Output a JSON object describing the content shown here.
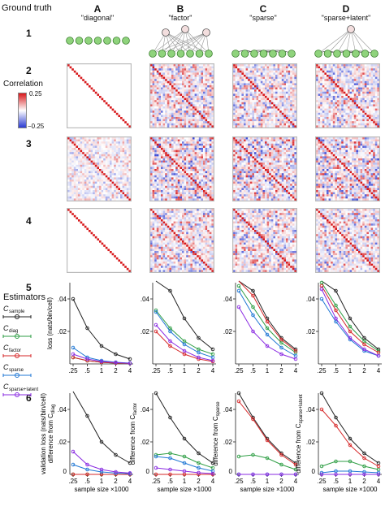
{
  "ground_truth_title": "Ground truth",
  "estimators_title": "Estimators",
  "correlation_title": "Correlation",
  "colorbar": {
    "max_label": "0.25",
    "min_label": "−0.25",
    "max_color": "#d7191c",
    "mid_color": "#ffffff",
    "min_color": "#2b3bd1"
  },
  "columns": [
    {
      "letter": "A",
      "title": "\"diagonal\""
    },
    {
      "letter": "B",
      "title": "\"factor\""
    },
    {
      "letter": "C",
      "title": "\"sparse\""
    },
    {
      "letter": "D",
      "title": "\"sparse+latent\""
    }
  ],
  "rows": {
    "r1": "1",
    "r2": "2",
    "r3": "3",
    "r4": "4",
    "r5": "5",
    "r6": "6"
  },
  "legend": [
    {
      "label": "C",
      "sub": "sample",
      "color": "#222222"
    },
    {
      "label": "C",
      "sub": "diag",
      "color": "#2e9e44"
    },
    {
      "label": "C",
      "sub": "factor",
      "color": "#d62728"
    },
    {
      "label": "C",
      "sub": "sparse",
      "color": "#1f77d4"
    },
    {
      "label": "C",
      "sub": "sparse+latent",
      "color": "#8a2be2"
    }
  ],
  "row5_ylabel": "loss (nats/bin/cell)",
  "row6_ylabel_A_1": "validation loss (nats/bin/cell)",
  "row6_ylabel_A_2": "difference from C",
  "row6_ylabel_A_sub": "diag",
  "row6_ylabels": [
    "difference from C",
    "difference from C",
    "difference from C"
  ],
  "row6_ylabel_subs": [
    "factor",
    "sparse",
    "sparse+latent"
  ],
  "xlabel": "sample size ×1000",
  "x_ticks": [
    ".25",
    ".5",
    "1",
    "2",
    "4"
  ],
  "y_ticks": [
    ".02",
    ".04"
  ],
  "y_zero": "0",
  "chart_data": [
    {
      "type": "line",
      "panel": "A5",
      "x": [
        0.25,
        0.5,
        1,
        2,
        4
      ],
      "ylim": [
        0,
        0.05
      ],
      "xlabel": "sample size ×1000",
      "ylabel": "loss (nats/bin/cell)",
      "series": [
        {
          "name": "C sample",
          "values": [
            0.04,
            0.022,
            0.011,
            0.006,
            0.003
          ],
          "color": "#222222"
        },
        {
          "name": "C diag",
          "values": [
            0.004,
            0.002,
            0.001,
            0.0005,
            0.0003
          ],
          "color": "#2e9e44"
        },
        {
          "name": "C factor",
          "values": [
            0.004,
            0.002,
            0.001,
            0.0005,
            0.0003
          ],
          "color": "#d62728"
        },
        {
          "name": "C sparse",
          "values": [
            0.01,
            0.004,
            0.002,
            0.001,
            0.0005
          ],
          "color": "#1f77d4"
        },
        {
          "name": "C sparse+latent",
          "values": [
            0.006,
            0.003,
            0.0015,
            0.0008,
            0.0004
          ],
          "color": "#8a2be2"
        }
      ]
    },
    {
      "type": "line",
      "panel": "B5",
      "x": [
        0.25,
        0.5,
        1,
        2,
        4
      ],
      "ylim": [
        0,
        0.05
      ],
      "series": [
        {
          "name": "C sample",
          "values": [
            0.06,
            0.045,
            0.028,
            0.016,
            0.009
          ],
          "color": "#222222"
        },
        {
          "name": "C diag",
          "values": [
            0.033,
            0.022,
            0.014,
            0.009,
            0.006
          ],
          "color": "#2e9e44"
        },
        {
          "name": "C factor",
          "values": [
            0.02,
            0.011,
            0.006,
            0.003,
            0.0015
          ],
          "color": "#d62728"
        },
        {
          "name": "C sparse",
          "values": [
            0.032,
            0.02,
            0.012,
            0.007,
            0.004
          ],
          "color": "#1f77d4"
        },
        {
          "name": "C sparse+latent",
          "values": [
            0.024,
            0.014,
            0.008,
            0.004,
            0.002
          ],
          "color": "#8a2be2"
        }
      ]
    },
    {
      "type": "line",
      "panel": "C5",
      "x": [
        0.25,
        0.5,
        1,
        2,
        4
      ],
      "ylim": [
        0,
        0.05
      ],
      "series": [
        {
          "name": "C sample",
          "values": [
            0.06,
            0.045,
            0.028,
            0.016,
            0.009
          ],
          "color": "#222222"
        },
        {
          "name": "C diag",
          "values": [
            0.048,
            0.035,
            0.022,
            0.013,
            0.007
          ],
          "color": "#2e9e44"
        },
        {
          "name": "C factor",
          "values": [
            0.06,
            0.042,
            0.026,
            0.015,
            0.008
          ],
          "color": "#d62728"
        },
        {
          "name": "C sparse",
          "values": [
            0.045,
            0.03,
            0.018,
            0.01,
            0.005
          ],
          "color": "#1f77d4"
        },
        {
          "name": "C sparse+latent",
          "values": [
            0.035,
            0.02,
            0.011,
            0.006,
            0.003
          ],
          "color": "#8a2be2"
        }
      ]
    },
    {
      "type": "line",
      "panel": "D5",
      "x": [
        0.25,
        0.5,
        1,
        2,
        4
      ],
      "ylim": [
        0,
        0.05
      ],
      "series": [
        {
          "name": "C sample",
          "values": [
            0.06,
            0.045,
            0.028,
            0.016,
            0.009
          ],
          "color": "#222222"
        },
        {
          "name": "C diag",
          "values": [
            0.05,
            0.036,
            0.023,
            0.014,
            0.008
          ],
          "color": "#2e9e44"
        },
        {
          "name": "C factor",
          "values": [
            0.048,
            0.033,
            0.02,
            0.012,
            0.007
          ],
          "color": "#d62728"
        },
        {
          "name": "C sparse",
          "values": [
            0.04,
            0.026,
            0.015,
            0.008,
            0.005
          ],
          "color": "#1f77d4"
        },
        {
          "name": "C sparse+latent",
          "values": [
            0.046,
            0.028,
            0.016,
            0.009,
            0.005
          ],
          "color": "#8a2be2"
        }
      ]
    },
    {
      "type": "line",
      "panel": "A6",
      "x": [
        0.25,
        0.5,
        1,
        2,
        4
      ],
      "ylim": [
        0,
        0.05
      ],
      "xlabel": "sample size ×1000",
      "series": [
        {
          "name": "C sample",
          "values": [
            0.055,
            0.036,
            0.02,
            0.012,
            0.007
          ],
          "color": "#222222"
        },
        {
          "name": "C diag",
          "values": [
            0.0,
            0.0,
            0.0,
            0.0,
            0.0
          ],
          "color": "#2e9e44"
        },
        {
          "name": "C factor",
          "values": [
            0.0,
            0.0,
            0.0,
            0.0,
            0.0
          ],
          "color": "#d62728"
        },
        {
          "name": "C sparse",
          "values": [
            0.006,
            0.003,
            0.0015,
            0.0008,
            0.0004
          ],
          "color": "#1f77d4"
        },
        {
          "name": "C sparse+latent",
          "values": [
            0.014,
            0.006,
            0.003,
            0.0015,
            0.0008
          ],
          "color": "#8a2be2"
        }
      ]
    },
    {
      "type": "line",
      "panel": "B6",
      "x": [
        0.25,
        0.5,
        1,
        2,
        4
      ],
      "ylim": [
        0,
        0.05
      ],
      "xlabel": "sample size ×1000",
      "series": [
        {
          "name": "C sample",
          "values": [
            0.05,
            0.035,
            0.022,
            0.013,
            0.007
          ],
          "color": "#222222"
        },
        {
          "name": "C diag",
          "values": [
            0.012,
            0.013,
            0.011,
            0.007,
            0.004
          ],
          "color": "#2e9e44"
        },
        {
          "name": "C factor",
          "values": [
            0.0,
            0.0,
            0.0,
            0.0,
            0.0
          ],
          "color": "#d62728"
        },
        {
          "name": "C sparse",
          "values": [
            0.011,
            0.01,
            0.007,
            0.004,
            0.002
          ],
          "color": "#1f77d4"
        },
        {
          "name": "C sparse+latent",
          "values": [
            0.004,
            0.003,
            0.002,
            0.001,
            0.0005
          ],
          "color": "#8a2be2"
        }
      ]
    },
    {
      "type": "line",
      "panel": "C6",
      "x": [
        0.25,
        0.5,
        1,
        2,
        4
      ],
      "ylim": [
        0,
        0.05
      ],
      "xlabel": "sample size ×1000",
      "series": [
        {
          "name": "C sample",
          "values": [
            0.05,
            0.035,
            0.022,
            0.013,
            0.007
          ],
          "color": "#222222"
        },
        {
          "name": "C diag",
          "values": [
            0.011,
            0.012,
            0.01,
            0.006,
            0.003
          ],
          "color": "#2e9e44"
        },
        {
          "name": "C factor",
          "values": [
            0.045,
            0.034,
            0.021,
            0.012,
            0.006
          ],
          "color": "#d62728"
        },
        {
          "name": "C sparse",
          "values": [
            0.0,
            0.0,
            0.0,
            0.0,
            0.0
          ],
          "color": "#1f77d4"
        },
        {
          "name": "C sparse+latent",
          "values": [
            0.0,
            0.0,
            0.0,
            0.0,
            0.0
          ],
          "color": "#8a2be2"
        }
      ]
    },
    {
      "type": "line",
      "panel": "D6",
      "x": [
        0.25,
        0.5,
        1,
        2,
        4
      ],
      "ylim": [
        0,
        0.05
      ],
      "xlabel": "sample size ×1000",
      "series": [
        {
          "name": "C sample",
          "values": [
            0.05,
            0.035,
            0.022,
            0.013,
            0.007
          ],
          "color": "#222222"
        },
        {
          "name": "C diag",
          "values": [
            0.005,
            0.008,
            0.008,
            0.005,
            0.003
          ],
          "color": "#2e9e44"
        },
        {
          "name": "C factor",
          "values": [
            0.04,
            0.03,
            0.018,
            0.01,
            0.005
          ],
          "color": "#d62728"
        },
        {
          "name": "C sparse",
          "values": [
            0.001,
            0.002,
            0.002,
            0.0015,
            0.001
          ],
          "color": "#1f77d4"
        },
        {
          "name": "C sparse+latent",
          "values": [
            0.0,
            0.0,
            0.0,
            0.0,
            0.0
          ],
          "color": "#8a2be2"
        }
      ]
    }
  ]
}
